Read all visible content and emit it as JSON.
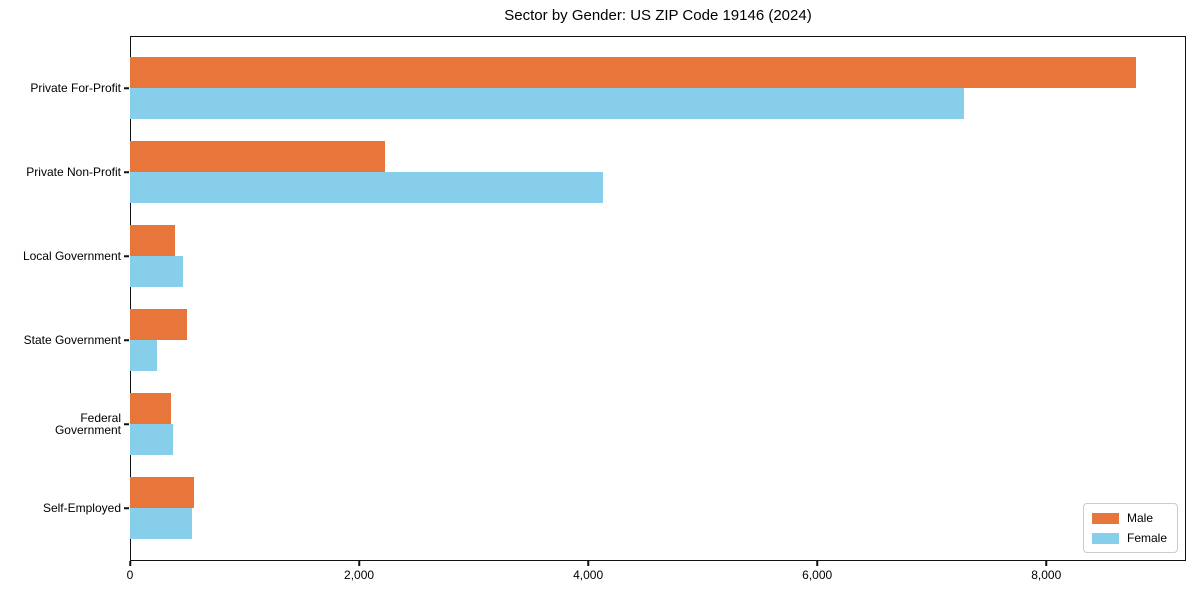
{
  "title": "Sector by Gender: US ZIP Code 19146 (2024)",
  "chart_data": {
    "type": "bar",
    "orientation": "horizontal",
    "title": "Sector by Gender: US ZIP Code 19146 (2024)",
    "categories": [
      "Private For-Profit",
      "Private Non-Profit",
      "Local Government",
      "State Government",
      "Federal Government",
      "Self-Employed"
    ],
    "series": [
      {
        "name": "Male",
        "color": "#e8763b",
        "values": [
          8780,
          2230,
          390,
          495,
          355,
          560
        ]
      },
      {
        "name": "Female",
        "color": "#87ceeb",
        "values": [
          7280,
          4130,
          460,
          240,
          375,
          540
        ]
      }
    ],
    "xlabel": "",
    "ylabel": "",
    "xlim": [
      0,
      9220
    ],
    "xticks": [
      0,
      2000,
      4000,
      6000,
      8000
    ],
    "xtick_labels": [
      "0",
      "2,000",
      "4,000",
      "6,000",
      "8,000"
    ],
    "grid": false,
    "legend": {
      "position": "lower right",
      "entries": [
        "Male",
        "Female"
      ]
    }
  }
}
